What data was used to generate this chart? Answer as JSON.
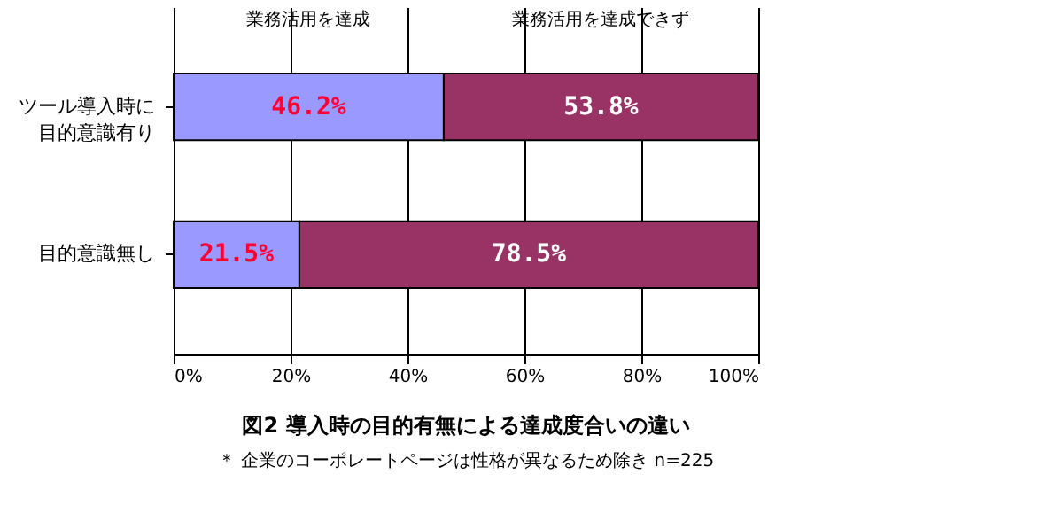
{
  "chart_data": {
    "type": "bar",
    "orientation": "horizontal",
    "stacked": true,
    "title": "図2  導入時の目的有無による達成度合いの違い",
    "annotations": [
      "＊ 企業のコーポレートページは性格が異なるため除き n=225"
    ],
    "categories": [
      "ツール導入時に目的意識有り",
      "目的意識無し"
    ],
    "series": [
      {
        "name": "業務活用を達成",
        "color": "#9999ff",
        "values": [
          46.2,
          21.5
        ],
        "value_labels": [
          "46.2%",
          "21.5%"
        ]
      },
      {
        "name": "業務活用を達成できず",
        "color": "#993366",
        "values": [
          53.8,
          78.5
        ],
        "value_labels": [
          "53.8%",
          "78.5%"
        ]
      }
    ],
    "xlim": [
      0,
      100
    ],
    "xticks": [
      {
        "value": 0,
        "label": "0%"
      },
      {
        "value": 20,
        "label": "20%"
      },
      {
        "value": 40,
        "label": "40%"
      },
      {
        "value": 60,
        "label": "60%"
      },
      {
        "value": 80,
        "label": "80%"
      },
      {
        "value": 100,
        "label": "100%"
      }
    ],
    "grid": "x",
    "legend": false
  }
}
